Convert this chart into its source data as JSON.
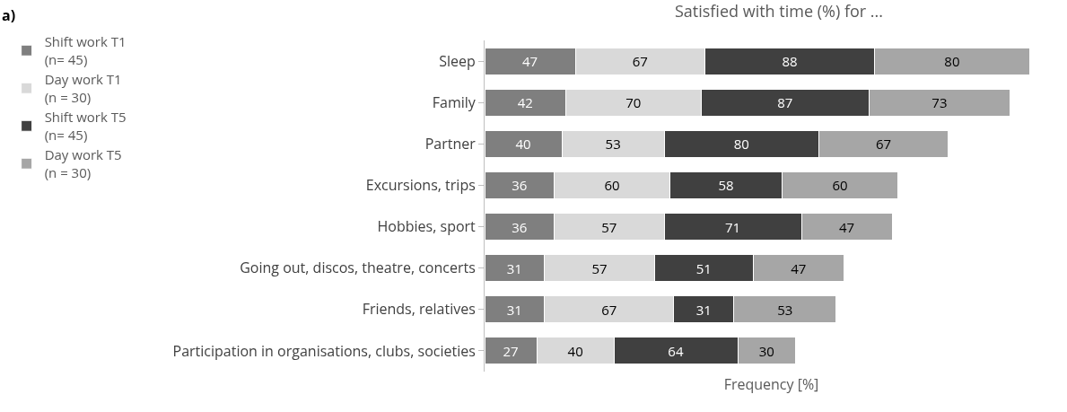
{
  "chart_data": {
    "type": "bar",
    "orientation": "horizontal",
    "stacked": true,
    "title": "Satisfied with time (%) for ...",
    "xlabel": "Frequency [%]",
    "annotations": [
      "a)"
    ],
    "categories": [
      "Sleep",
      "Family",
      "Partner",
      "Excursions, trips",
      "Hobbies, sport",
      "Going out, discos, theatre, concerts",
      "Friends, relatives",
      "Participation in organisations, clubs, societies"
    ],
    "series": [
      {
        "name": "Shift work T1\n(n= 45)",
        "color": "#7f7f7f",
        "values": [
          47,
          42,
          40,
          36,
          36,
          31,
          31,
          27
        ]
      },
      {
        "name": "Day work T1\n(n = 30)",
        "color": "#d9d9d9",
        "values": [
          67,
          70,
          53,
          60,
          57,
          57,
          67,
          40
        ]
      },
      {
        "name": "Shift work T5\n(n= 45)",
        "color": "#404040",
        "values": [
          88,
          87,
          80,
          58,
          71,
          51,
          31,
          64
        ]
      },
      {
        "name": "Day work T5\n(n = 30)",
        "color": "#a6a6a6",
        "values": [
          80,
          73,
          67,
          60,
          47,
          47,
          53,
          30
        ]
      }
    ],
    "data_labels": true,
    "legend": "left",
    "tick_labels": "y",
    "grid": false
  }
}
